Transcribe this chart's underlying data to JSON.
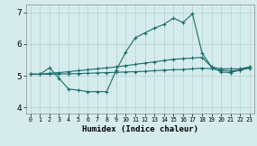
{
  "xlabel": "Humidex (Indice chaleur)",
  "xlim": [
    -0.5,
    23.5
  ],
  "ylim": [
    3.8,
    7.25
  ],
  "yticks": [
    4,
    5,
    6,
    7
  ],
  "xticks": [
    0,
    1,
    2,
    3,
    4,
    5,
    6,
    7,
    8,
    9,
    10,
    11,
    12,
    13,
    14,
    15,
    16,
    17,
    18,
    19,
    20,
    21,
    22,
    23
  ],
  "background_color": "#d6ecec",
  "grid_color": "#b0d0d0",
  "line_color": "#1a6b6b",
  "line1_x": [
    0,
    1,
    2,
    3,
    4,
    5,
    6,
    7,
    8,
    9,
    10,
    11,
    12,
    13,
    14,
    15,
    16,
    17,
    18,
    19,
    20,
    21,
    22,
    23
  ],
  "line1_y": [
    5.05,
    5.05,
    5.25,
    4.92,
    4.58,
    4.55,
    4.5,
    4.5,
    4.5,
    5.18,
    5.75,
    6.2,
    6.35,
    6.5,
    6.62,
    6.82,
    6.68,
    6.95,
    5.72,
    5.28,
    5.12,
    5.1,
    5.18,
    5.28
  ],
  "line2_x": [
    0,
    1,
    2,
    3,
    4,
    5,
    6,
    7,
    8,
    9,
    10,
    11,
    12,
    13,
    14,
    15,
    16,
    17,
    18,
    19,
    20,
    21,
    22,
    23
  ],
  "line2_y": [
    5.05,
    5.05,
    5.08,
    5.1,
    5.13,
    5.16,
    5.19,
    5.22,
    5.25,
    5.28,
    5.32,
    5.36,
    5.4,
    5.44,
    5.48,
    5.52,
    5.54,
    5.56,
    5.58,
    5.28,
    5.22,
    5.22,
    5.22,
    5.28
  ],
  "line3_x": [
    0,
    1,
    2,
    3,
    4,
    5,
    6,
    7,
    8,
    9,
    10,
    11,
    12,
    13,
    14,
    15,
    16,
    17,
    18,
    19,
    20,
    21,
    22,
    23
  ],
  "line3_y": [
    5.05,
    5.05,
    5.05,
    5.06,
    5.06,
    5.07,
    5.08,
    5.09,
    5.1,
    5.11,
    5.12,
    5.13,
    5.14,
    5.16,
    5.18,
    5.19,
    5.2,
    5.22,
    5.24,
    5.22,
    5.18,
    5.15,
    5.18,
    5.24
  ]
}
